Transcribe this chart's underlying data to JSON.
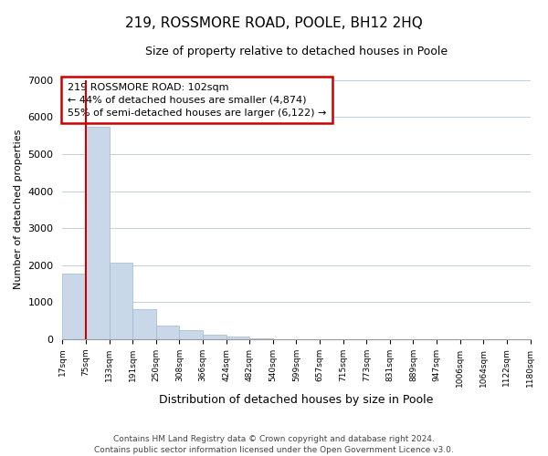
{
  "title": "219, ROSSMORE ROAD, POOLE, BH12 2HQ",
  "subtitle": "Size of property relative to detached houses in Poole",
  "xlabel": "Distribution of detached houses by size in Poole",
  "ylabel": "Number of detached properties",
  "bar_values": [
    1780,
    5730,
    2060,
    810,
    370,
    230,
    110,
    60,
    30,
    0,
    0,
    0,
    0,
    0,
    0,
    0,
    0,
    0,
    0,
    0
  ],
  "x_labels": [
    "17sqm",
    "75sqm",
    "133sqm",
    "191sqm",
    "250sqm",
    "308sqm",
    "366sqm",
    "424sqm",
    "482sqm",
    "540sqm",
    "599sqm",
    "657sqm",
    "715sqm",
    "773sqm",
    "831sqm",
    "889sqm",
    "947sqm",
    "1006sqm",
    "1064sqm",
    "1122sqm",
    "1180sqm"
  ],
  "bar_color": "#c8d8e8",
  "bar_edge_color": "#a0b8d0",
  "vline_x": 1.0,
  "vline_color": "#cc0000",
  "ylim": [
    0,
    7000
  ],
  "yticks": [
    0,
    1000,
    2000,
    3000,
    4000,
    5000,
    6000,
    7000
  ],
  "annotation_title": "219 ROSSMORE ROAD: 102sqm",
  "annotation_line1": "← 44% of detached houses are smaller (4,874)",
  "annotation_line2": "55% of semi-detached houses are larger (6,122) →",
  "annotation_box_color": "#ffffff",
  "annotation_box_edge": "#cc0000",
  "footer1": "Contains HM Land Registry data © Crown copyright and database right 2024.",
  "footer2": "Contains public sector information licensed under the Open Government Licence v3.0.",
  "background_color": "#ffffff",
  "grid_color": "#c0d0e0"
}
